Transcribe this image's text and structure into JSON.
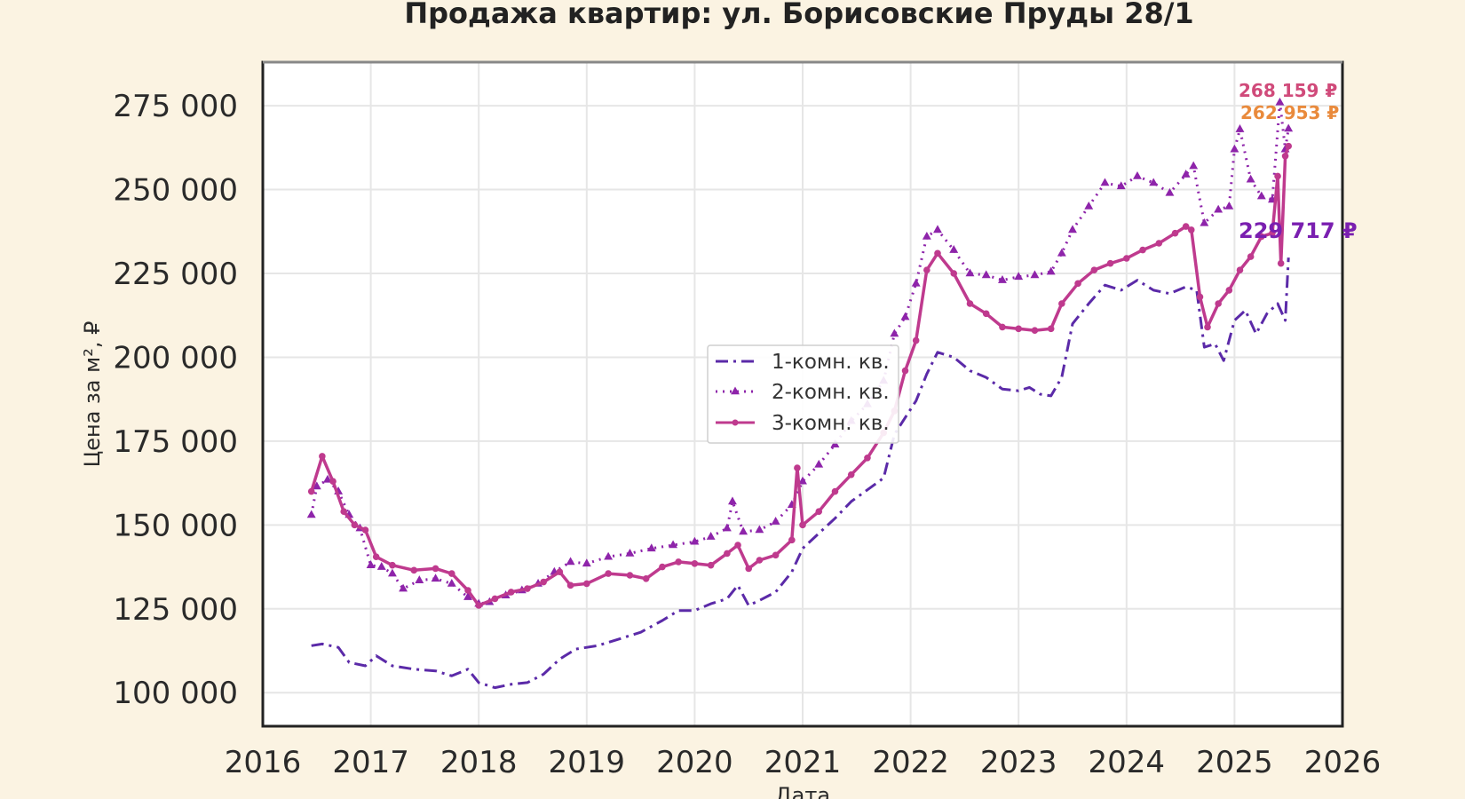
{
  "chart_data": {
    "type": "line",
    "title": "Продажа квартир: ул. Борисовские Пруды 28/1",
    "xlabel": "Дата",
    "ylabel": "Цена за м², ₽",
    "xlim": [
      2016,
      2026
    ],
    "ylim": [
      90000,
      288000
    ],
    "x_ticks": [
      2016,
      2017,
      2018,
      2019,
      2020,
      2021,
      2022,
      2023,
      2024,
      2025,
      2026
    ],
    "x_tick_labels": [
      "2016",
      "2017",
      "2018",
      "2019",
      "2020",
      "2021",
      "2022",
      "2023",
      "2024",
      "2025",
      "2026"
    ],
    "y_ticks": [
      100000,
      125000,
      150000,
      175000,
      200000,
      225000,
      250000,
      275000
    ],
    "y_tick_labels": [
      "100 000",
      "125 000",
      "150 000",
      "175 000",
      "200 000",
      "225 000",
      "250 000",
      "275 000"
    ],
    "grid": true,
    "legend_position": "center",
    "series": [
      {
        "name": "1-комн. кв.",
        "color": "#5b2aa8",
        "line_style": "dash-dot",
        "marker": "none",
        "end_label": "229 717 ₽",
        "end_label_color": "#7a1fb0",
        "points": [
          [
            2016.45,
            114000
          ],
          [
            2016.55,
            114500
          ],
          [
            2016.7,
            113500
          ],
          [
            2016.8,
            109000
          ],
          [
            2016.95,
            108000
          ],
          [
            2017.05,
            111000
          ],
          [
            2017.2,
            108000
          ],
          [
            2017.4,
            107000
          ],
          [
            2017.6,
            106500
          ],
          [
            2017.75,
            105000
          ],
          [
            2017.9,
            107000
          ],
          [
            2018.0,
            103000
          ],
          [
            2018.15,
            101500
          ],
          [
            2018.3,
            102500
          ],
          [
            2018.45,
            103000
          ],
          [
            2018.6,
            105500
          ],
          [
            2018.75,
            110000
          ],
          [
            2018.9,
            113000
          ],
          [
            2019.1,
            114000
          ],
          [
            2019.3,
            116000
          ],
          [
            2019.5,
            118000
          ],
          [
            2019.7,
            121500
          ],
          [
            2019.85,
            124500
          ],
          [
            2020.0,
            124500
          ],
          [
            2020.15,
            126500
          ],
          [
            2020.3,
            128000
          ],
          [
            2020.4,
            132000
          ],
          [
            2020.5,
            126000
          ],
          [
            2020.6,
            127500
          ],
          [
            2020.75,
            130000
          ],
          [
            2020.9,
            136000
          ],
          [
            2021.0,
            143000
          ],
          [
            2021.15,
            147500
          ],
          [
            2021.3,
            152000
          ],
          [
            2021.45,
            157000
          ],
          [
            2021.6,
            160500
          ],
          [
            2021.75,
            164000
          ],
          [
            2021.85,
            177000
          ],
          [
            2021.95,
            182000
          ],
          [
            2022.05,
            187000
          ],
          [
            2022.15,
            195000
          ],
          [
            2022.25,
            201500
          ],
          [
            2022.4,
            200000
          ],
          [
            2022.55,
            196000
          ],
          [
            2022.7,
            194000
          ],
          [
            2022.85,
            190500
          ],
          [
            2023.0,
            190000
          ],
          [
            2023.1,
            191000
          ],
          [
            2023.2,
            189000
          ],
          [
            2023.3,
            188500
          ],
          [
            2023.4,
            194000
          ],
          [
            2023.5,
            210000
          ],
          [
            2023.65,
            216000
          ],
          [
            2023.8,
            221500
          ],
          [
            2023.95,
            220000
          ],
          [
            2024.1,
            223000
          ],
          [
            2024.25,
            220000
          ],
          [
            2024.4,
            219000
          ],
          [
            2024.55,
            221000
          ],
          [
            2024.65,
            220000
          ],
          [
            2024.72,
            203000
          ],
          [
            2024.82,
            204000
          ],
          [
            2024.9,
            199000
          ],
          [
            2025.0,
            211000
          ],
          [
            2025.1,
            214000
          ],
          [
            2025.2,
            207000
          ],
          [
            2025.3,
            213000
          ],
          [
            2025.4,
            216000
          ],
          [
            2025.47,
            211000
          ],
          [
            2025.5,
            229717
          ]
        ]
      },
      {
        "name": "2-комн. кв.",
        "color": "#8e24aa",
        "line_style": "dotted",
        "marker": "triangle",
        "end_label": "268 159 ₽",
        "end_label_color": "#d04a7a",
        "points": [
          [
            2016.45,
            153000
          ],
          [
            2016.5,
            161500
          ],
          [
            2016.6,
            163500
          ],
          [
            2016.7,
            160000
          ],
          [
            2016.8,
            153000
          ],
          [
            2016.9,
            149000
          ],
          [
            2017.0,
            138000
          ],
          [
            2017.1,
            137500
          ],
          [
            2017.2,
            135500
          ],
          [
            2017.3,
            131000
          ],
          [
            2017.45,
            133500
          ],
          [
            2017.6,
            134000
          ],
          [
            2017.75,
            132500
          ],
          [
            2017.9,
            128500
          ],
          [
            2018.0,
            126500
          ],
          [
            2018.1,
            127000
          ],
          [
            2018.25,
            129000
          ],
          [
            2018.4,
            130500
          ],
          [
            2018.55,
            132500
          ],
          [
            2018.7,
            136000
          ],
          [
            2018.85,
            139000
          ],
          [
            2019.0,
            138500
          ],
          [
            2019.2,
            140500
          ],
          [
            2019.4,
            141500
          ],
          [
            2019.6,
            143000
          ],
          [
            2019.8,
            144000
          ],
          [
            2020.0,
            145000
          ],
          [
            2020.15,
            146500
          ],
          [
            2020.3,
            149000
          ],
          [
            2020.35,
            157000
          ],
          [
            2020.45,
            148000
          ],
          [
            2020.6,
            148500
          ],
          [
            2020.75,
            151000
          ],
          [
            2020.9,
            156000
          ],
          [
            2021.0,
            163000
          ],
          [
            2021.15,
            168000
          ],
          [
            2021.3,
            174000
          ],
          [
            2021.45,
            181000
          ],
          [
            2021.6,
            186000
          ],
          [
            2021.75,
            193000
          ],
          [
            2021.85,
            207000
          ],
          [
            2021.95,
            212000
          ],
          [
            2022.05,
            222000
          ],
          [
            2022.15,
            236000
          ],
          [
            2022.25,
            238000
          ],
          [
            2022.4,
            232000
          ],
          [
            2022.55,
            225000
          ],
          [
            2022.7,
            224500
          ],
          [
            2022.85,
            223000
          ],
          [
            2023.0,
            224000
          ],
          [
            2023.15,
            224500
          ],
          [
            2023.3,
            225500
          ],
          [
            2023.4,
            231000
          ],
          [
            2023.5,
            238000
          ],
          [
            2023.65,
            245000
          ],
          [
            2023.8,
            252000
          ],
          [
            2023.95,
            251000
          ],
          [
            2024.1,
            254000
          ],
          [
            2024.25,
            252000
          ],
          [
            2024.4,
            249000
          ],
          [
            2024.55,
            254500
          ],
          [
            2024.62,
            257000
          ],
          [
            2024.72,
            240000
          ],
          [
            2024.85,
            244000
          ],
          [
            2024.95,
            245000
          ],
          [
            2025.0,
            262000
          ],
          [
            2025.05,
            268000
          ],
          [
            2025.15,
            253000
          ],
          [
            2025.25,
            248000
          ],
          [
            2025.35,
            247000
          ],
          [
            2025.42,
            276000
          ],
          [
            2025.47,
            262000
          ],
          [
            2025.5,
            268159
          ]
        ]
      },
      {
        "name": "3-комн. кв.",
        "color": "#bf3a8e",
        "line_style": "solid",
        "marker": "circle",
        "end_label": "262 953 ₽",
        "end_label_color": "#e98a3c",
        "points": [
          [
            2016.45,
            160000
          ],
          [
            2016.55,
            170500
          ],
          [
            2016.65,
            163000
          ],
          [
            2016.75,
            154000
          ],
          [
            2016.85,
            150000
          ],
          [
            2016.95,
            148500
          ],
          [
            2017.05,
            140500
          ],
          [
            2017.2,
            138000
          ],
          [
            2017.4,
            136500
          ],
          [
            2017.6,
            137000
          ],
          [
            2017.75,
            135500
          ],
          [
            2017.9,
            130500
          ],
          [
            2018.0,
            126000
          ],
          [
            2018.15,
            128000
          ],
          [
            2018.3,
            130000
          ],
          [
            2018.45,
            131000
          ],
          [
            2018.6,
            133000
          ],
          [
            2018.75,
            136000
          ],
          [
            2018.85,
            132000
          ],
          [
            2019.0,
            132500
          ],
          [
            2019.2,
            135500
          ],
          [
            2019.4,
            135000
          ],
          [
            2019.55,
            134000
          ],
          [
            2019.7,
            137500
          ],
          [
            2019.85,
            139000
          ],
          [
            2020.0,
            138500
          ],
          [
            2020.15,
            138000
          ],
          [
            2020.3,
            141500
          ],
          [
            2020.4,
            144000
          ],
          [
            2020.5,
            137000
          ],
          [
            2020.6,
            139500
          ],
          [
            2020.75,
            141000
          ],
          [
            2020.9,
            145500
          ],
          [
            2020.95,
            167000
          ],
          [
            2021.0,
            150000
          ],
          [
            2021.15,
            154000
          ],
          [
            2021.3,
            160000
          ],
          [
            2021.45,
            165000
          ],
          [
            2021.6,
            170000
          ],
          [
            2021.75,
            177500
          ],
          [
            2021.85,
            184000
          ],
          [
            2021.95,
            196000
          ],
          [
            2022.05,
            205000
          ],
          [
            2022.15,
            226000
          ],
          [
            2022.25,
            231000
          ],
          [
            2022.4,
            225000
          ],
          [
            2022.55,
            216000
          ],
          [
            2022.7,
            213000
          ],
          [
            2022.85,
            209000
          ],
          [
            2023.0,
            208500
          ],
          [
            2023.15,
            208000
          ],
          [
            2023.3,
            208500
          ],
          [
            2023.4,
            216000
          ],
          [
            2023.55,
            222000
          ],
          [
            2023.7,
            226000
          ],
          [
            2023.85,
            228000
          ],
          [
            2024.0,
            229500
          ],
          [
            2024.15,
            232000
          ],
          [
            2024.3,
            234000
          ],
          [
            2024.45,
            237000
          ],
          [
            2024.55,
            239000
          ],
          [
            2024.6,
            238000
          ],
          [
            2024.68,
            218000
          ],
          [
            2024.75,
            209000
          ],
          [
            2024.85,
            216000
          ],
          [
            2024.95,
            220000
          ],
          [
            2025.05,
            226000
          ],
          [
            2025.15,
            230000
          ],
          [
            2025.25,
            236000
          ],
          [
            2025.35,
            237000
          ],
          [
            2025.4,
            254000
          ],
          [
            2025.43,
            228000
          ],
          [
            2025.47,
            260000
          ],
          [
            2025.5,
            262953
          ]
        ]
      }
    ]
  }
}
